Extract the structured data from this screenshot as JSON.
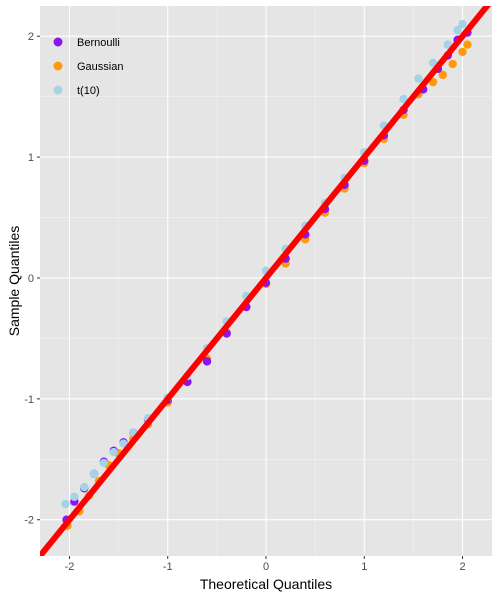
{
  "chart_data": {
    "type": "scatter",
    "subtype": "qq-plot",
    "title": "",
    "xlabel": "Theoretical Quantiles",
    "ylabel": "Sample Quantiles",
    "xlim": [
      -2.3,
      2.3
    ],
    "ylim": [
      -2.3,
      2.25
    ],
    "xticks": [
      -2,
      -1,
      0,
      1,
      2
    ],
    "yticks": [
      -2,
      -1,
      0,
      1,
      2
    ],
    "xtick_labels": [
      "-2",
      "-1",
      "0",
      "1",
      "2"
    ],
    "ytick_labels": [
      "-2",
      "-1",
      "0",
      "1",
      "2"
    ],
    "grid": true,
    "background": "#e5e5e5",
    "legend_position": "top-left",
    "series": [
      {
        "name": "Bernoulli",
        "color": "#8b14f0",
        "points": [
          [
            -2.03,
            -2.0
          ],
          [
            -1.95,
            -1.85
          ],
          [
            -1.85,
            -1.74
          ],
          [
            -1.75,
            -1.62
          ],
          [
            -1.65,
            -1.52
          ],
          [
            -1.55,
            -1.43
          ],
          [
            -1.45,
            -1.36
          ],
          [
            -1.35,
            -1.28
          ],
          [
            -1.2,
            -1.17
          ],
          [
            -1.0,
            -1.01
          ],
          [
            -0.8,
            -0.86
          ],
          [
            -0.6,
            -0.69
          ],
          [
            -0.4,
            -0.46
          ],
          [
            -0.2,
            -0.24
          ],
          [
            0.0,
            -0.04
          ],
          [
            0.2,
            0.16
          ],
          [
            0.4,
            0.36
          ],
          [
            0.6,
            0.57
          ],
          [
            0.8,
            0.77
          ],
          [
            1.0,
            0.97
          ],
          [
            1.2,
            1.18
          ],
          [
            1.4,
            1.39
          ],
          [
            1.6,
            1.56
          ],
          [
            1.75,
            1.73
          ],
          [
            1.85,
            1.84
          ],
          [
            1.95,
            1.97
          ],
          [
            2.05,
            2.03
          ]
        ]
      },
      {
        "name": "Gaussian",
        "color": "#ff9a0c",
        "points": [
          [
            -2.02,
            -2.05
          ],
          [
            -1.9,
            -1.93
          ],
          [
            -1.8,
            -1.8
          ],
          [
            -1.7,
            -1.68
          ],
          [
            -1.6,
            -1.55
          ],
          [
            -1.5,
            -1.45
          ],
          [
            -1.35,
            -1.33
          ],
          [
            -1.2,
            -1.21
          ],
          [
            -1.0,
            -1.03
          ],
          [
            -0.8,
            -0.86
          ],
          [
            -0.6,
            -0.67
          ],
          [
            -0.4,
            -0.45
          ],
          [
            -0.2,
            -0.24
          ],
          [
            0.0,
            -0.05
          ],
          [
            0.2,
            0.12
          ],
          [
            0.4,
            0.32
          ],
          [
            0.6,
            0.54
          ],
          [
            0.8,
            0.74
          ],
          [
            1.0,
            0.95
          ],
          [
            1.2,
            1.15
          ],
          [
            1.4,
            1.35
          ],
          [
            1.55,
            1.52
          ],
          [
            1.7,
            1.62
          ],
          [
            1.8,
            1.68
          ],
          [
            1.9,
            1.77
          ],
          [
            2.0,
            1.87
          ],
          [
            2.05,
            1.93
          ]
        ]
      },
      {
        "name": "t(10)",
        "color": "#a4d3e6",
        "points": [
          [
            -2.04,
            -1.87
          ],
          [
            -1.95,
            -1.81
          ],
          [
            -1.85,
            -1.73
          ],
          [
            -1.75,
            -1.62
          ],
          [
            -1.65,
            -1.53
          ],
          [
            -1.55,
            -1.44
          ],
          [
            -1.45,
            -1.37
          ],
          [
            -1.35,
            -1.28
          ],
          [
            -1.2,
            -1.16
          ],
          [
            -1.0,
            -0.99
          ],
          [
            -0.8,
            -0.81
          ],
          [
            -0.6,
            -0.58
          ],
          [
            -0.4,
            -0.36
          ],
          [
            -0.2,
            -0.15
          ],
          [
            0.0,
            0.06
          ],
          [
            0.2,
            0.24
          ],
          [
            0.4,
            0.43
          ],
          [
            0.6,
            0.62
          ],
          [
            0.8,
            0.83
          ],
          [
            1.0,
            1.04
          ],
          [
            1.2,
            1.26
          ],
          [
            1.4,
            1.48
          ],
          [
            1.55,
            1.65
          ],
          [
            1.7,
            1.78
          ],
          [
            1.85,
            1.93
          ],
          [
            1.95,
            2.05
          ],
          [
            2.0,
            2.1
          ]
        ]
      }
    ],
    "reference_line": {
      "color": "#ff0000",
      "intercept": 0,
      "slope": 1
    }
  }
}
